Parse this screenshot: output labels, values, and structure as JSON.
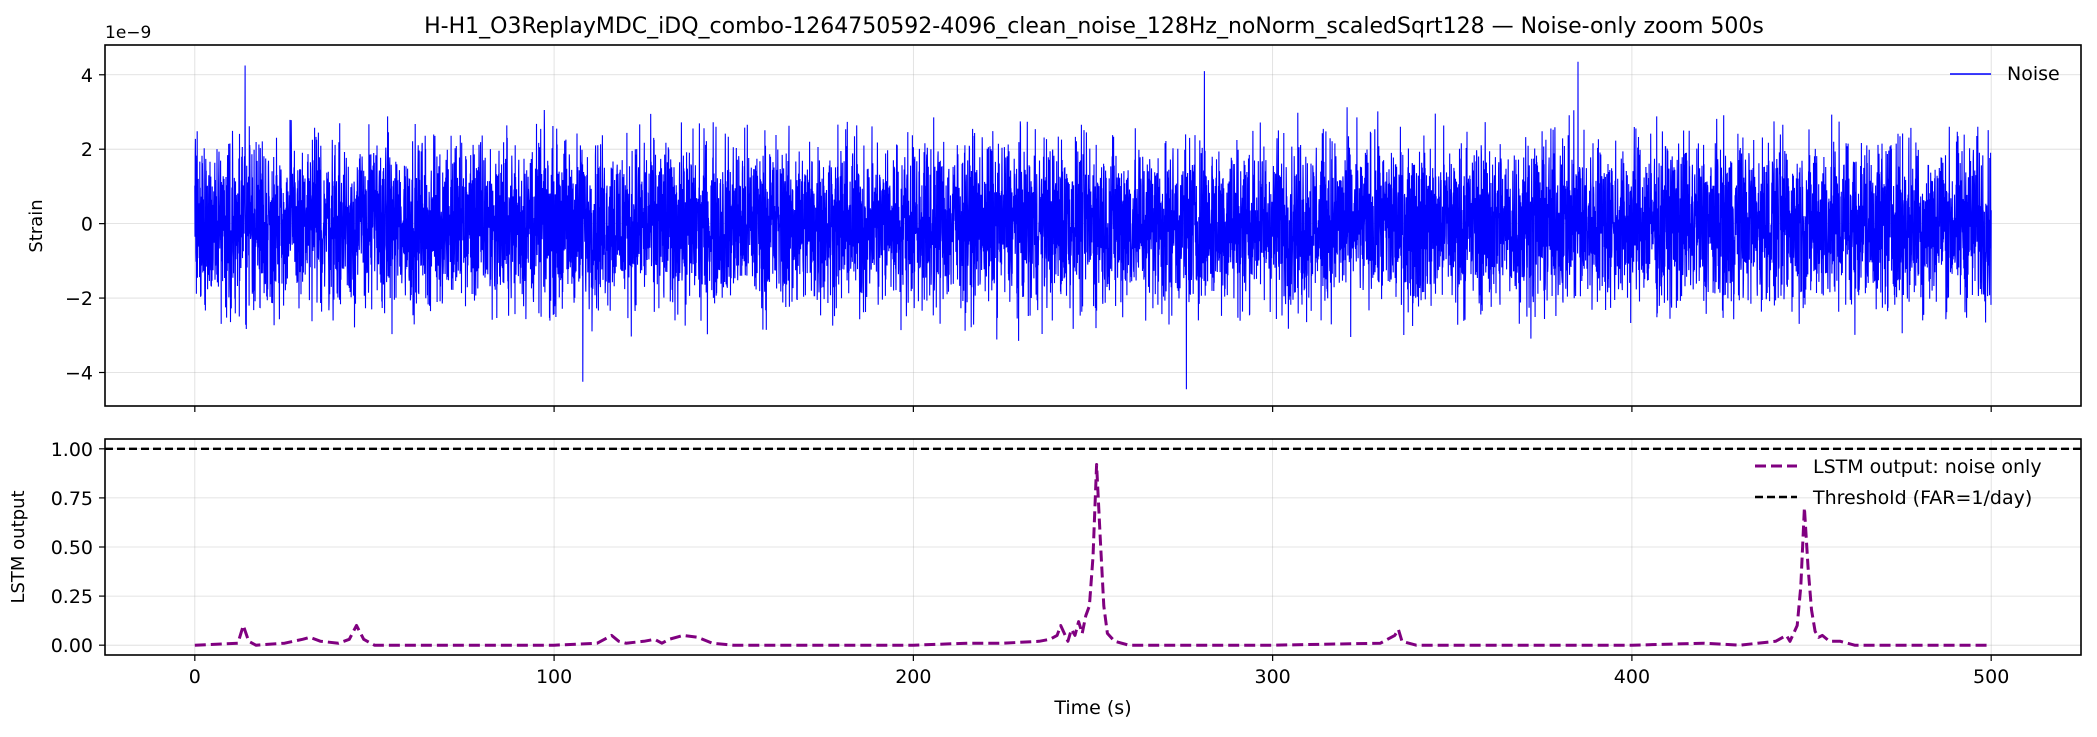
{
  "figure": {
    "title": "H-H1_O3ReplayMDC_iDQ_combo-1264750592-4096_clean_noise_128Hz_noNorm_scaledSqrt128 — Noise-only zoom 500s"
  },
  "chart_data": [
    {
      "type": "line",
      "name": "top-panel",
      "ylabel": "Strain",
      "y_offset_label": "1e−9",
      "xlim": [
        -25,
        525
      ],
      "ylim": [
        -4.9,
        4.8
      ],
      "y_scale_factor": 1e-09,
      "yticks": [
        -4,
        -2,
        0,
        2,
        4
      ],
      "ytick_labels": [
        "−4",
        "−2",
        "0",
        "2",
        "4"
      ],
      "xticks": [
        0,
        100,
        200,
        300,
        400,
        500
      ],
      "grid": true,
      "legend_position": "top-right",
      "series": [
        {
          "name": "Noise",
          "color": "#0000ff",
          "style": "solid",
          "x_range": [
            0,
            500
          ],
          "approx_envelope_1e-9": [
            -3.6,
            4.2
          ],
          "peaks_1e-9": [
            {
              "x": 14,
              "y": 4.25
            },
            {
              "x": 281,
              "y": 4.1
            },
            {
              "x": 385,
              "y": 4.35
            },
            {
              "x": 276,
              "y": -4.45
            },
            {
              "x": 108,
              "y": -4.25
            }
          ]
        }
      ]
    },
    {
      "type": "line",
      "name": "bottom-panel",
      "xlabel": "Time (s)",
      "ylabel": "LSTM output",
      "xlim": [
        -25,
        525
      ],
      "ylim": [
        -0.05,
        1.05
      ],
      "yticks": [
        0,
        0.25,
        0.5,
        0.75,
        1.0
      ],
      "ytick_labels": [
        "0.00",
        "0.25",
        "0.50",
        "0.75",
        "1.00"
      ],
      "xticks": [
        0,
        100,
        200,
        300,
        400,
        500
      ],
      "xtick_labels": [
        "0",
        "100",
        "200",
        "300",
        "400",
        "500"
      ],
      "grid": true,
      "legend_position": "top-right",
      "series": [
        {
          "name": "LSTM output: noise only",
          "color": "#800080",
          "style": "dashed",
          "x": [
            0,
            12,
            13.5,
            15,
            17,
            25,
            30,
            32,
            35,
            40,
            43,
            45,
            47,
            50,
            55,
            100,
            112,
            116,
            118,
            120,
            125,
            128,
            130,
            132,
            136,
            140,
            144,
            150,
            200,
            215,
            225,
            235,
            238,
            240,
            241,
            242,
            243,
            244,
            245,
            246,
            247,
            248,
            249,
            250,
            251,
            252,
            253,
            254,
            256,
            260,
            300,
            330,
            334,
            335,
            336,
            340,
            400,
            420,
            430,
            440,
            443,
            444,
            445,
            446,
            447,
            448,
            449,
            450,
            451,
            452,
            453,
            455,
            458,
            462,
            500
          ],
          "y": [
            0.0,
            0.01,
            0.1,
            0.02,
            0.0,
            0.01,
            0.03,
            0.04,
            0.02,
            0.01,
            0.03,
            0.1,
            0.03,
            0.0,
            0.0,
            0.0,
            0.01,
            0.05,
            0.02,
            0.01,
            0.02,
            0.03,
            0.01,
            0.03,
            0.05,
            0.04,
            0.01,
            0.0,
            0.0,
            0.01,
            0.01,
            0.02,
            0.03,
            0.05,
            0.1,
            0.06,
            0.02,
            0.08,
            0.05,
            0.12,
            0.06,
            0.15,
            0.2,
            0.45,
            0.92,
            0.55,
            0.2,
            0.06,
            0.02,
            0.0,
            0.0,
            0.01,
            0.05,
            0.08,
            0.02,
            0.0,
            0.0,
            0.01,
            0.0,
            0.02,
            0.05,
            0.02,
            0.06,
            0.1,
            0.3,
            0.7,
            0.4,
            0.18,
            0.07,
            0.04,
            0.05,
            0.02,
            0.02,
            0.0,
            0.0
          ]
        },
        {
          "name": "Threshold (FAR=1/day)",
          "color": "#000000",
          "style": "dashed",
          "y_constant": 1.0
        }
      ]
    }
  ]
}
